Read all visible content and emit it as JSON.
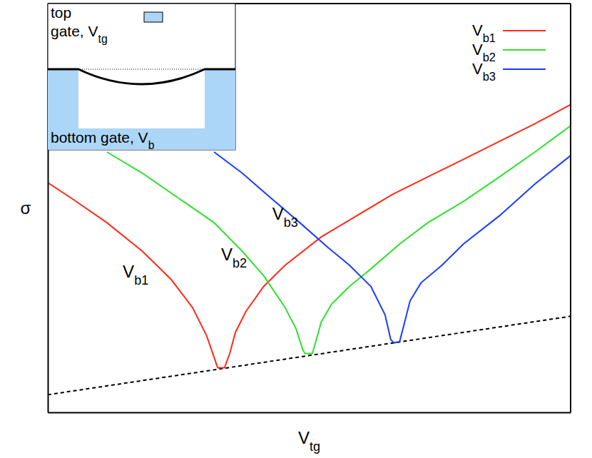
{
  "chart_data": {
    "type": "line",
    "x_label": "Vtg",
    "y_label": "σ",
    "xlim": [
      0,
      100
    ],
    "ylim": [
      0,
      100
    ],
    "tick_labels": false,
    "grid": false,
    "legend": "upper right",
    "series": [
      {
        "name": "Vb1",
        "color": "#ff2a1a",
        "x": [
          0,
          4.5,
          11.3,
          18.1,
          23.6,
          27.7,
          30.4,
          31.8,
          32.5,
          33.8,
          34.8,
          35.9,
          37.9,
          41.3,
          45.4,
          52.3,
          59.1,
          65.9,
          72.7,
          79.5,
          86.4,
          93.2,
          100
        ],
        "values": [
          56.2,
          52.4,
          46.4,
          39.4,
          32.5,
          25.6,
          18.7,
          13.5,
          10.9,
          10.9,
          14.4,
          19.6,
          24.7,
          30.8,
          36.0,
          42.9,
          48.1,
          53.3,
          57.6,
          61.9,
          66.3,
          70.6,
          75.3
        ]
      },
      {
        "name": "Vb2",
        "color": "#2fe02f",
        "x": [
          11.3,
          18.1,
          25.0,
          31.8,
          37.2,
          41.3,
          45.4,
          47.5,
          48.8,
          49.2,
          50.6,
          51.2,
          52.3,
          54.3,
          57.7,
          61.8,
          67.3,
          72.7,
          79.5,
          86.4,
          93.2,
          100
        ],
        "values": [
          63.7,
          58.5,
          52.4,
          46.4,
          39.4,
          33.4,
          25.6,
          20.4,
          15.2,
          14.4,
          14.4,
          17.0,
          22.1,
          26.5,
          30.8,
          35.1,
          41.2,
          46.4,
          51.6,
          57.6,
          63.7,
          70.1
        ]
      },
      {
        "name": "Vb3",
        "color": "#1a3cff",
        "x": [
          31.8,
          37.2,
          42.7,
          48.2,
          53.6,
          57.7,
          61.8,
          64.5,
          65.6,
          66.2,
          67.3,
          68.1,
          69.3,
          71.4,
          75.4,
          79.5,
          86.4,
          93.2,
          100
        ],
        "values": [
          63.7,
          58.5,
          52.4,
          46.4,
          40.3,
          36.0,
          30.8,
          23.9,
          17.8,
          17.0,
          17.3,
          21.3,
          27.3,
          31.7,
          36.0,
          41.2,
          48.1,
          55.9,
          62.8
        ]
      }
    ],
    "baseline": {
      "x": [
        0,
        100
      ],
      "values": [
        4.3,
        23.5
      ],
      "line_style": "dashed",
      "color": "#000000"
    },
    "annotations": [
      {
        "text": "Vb1",
        "x": 16.8,
        "y": 34.3
      },
      {
        "text": "Vb2",
        "x": 35.6,
        "y": 38.6
      },
      {
        "text": "Vb3",
        "x": 45.4,
        "y": 48.6
      }
    ],
    "inset": {
      "top_gate": "top gate, Vtg",
      "bottom_gate": "bottom gate, Vb"
    }
  }
}
